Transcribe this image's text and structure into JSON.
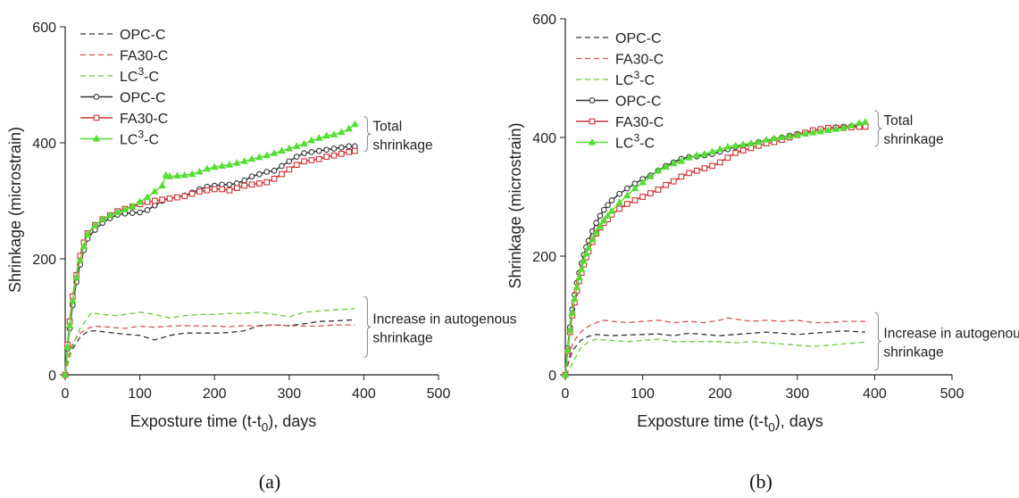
{
  "figure": {
    "captions": [
      "(a)",
      "(b)"
    ]
  },
  "chart_data": [
    {
      "type": "line",
      "panel_caption": "(a)",
      "xlabel": "Exposture time (t-t0), days",
      "ylabel": "Shrinkage (microstrain)",
      "xlim": [
        0,
        500
      ],
      "ylim": [
        0,
        600
      ],
      "xticks": [
        "0",
        "100",
        "200",
        "300",
        "400",
        "500"
      ],
      "yticks": [
        "0",
        "200",
        "400",
        "600"
      ],
      "legend_position": "top-left",
      "annotations": [
        {
          "text": [
            "Total",
            "shrinkage"
          ],
          "bracket": [
            385,
            445
          ]
        },
        {
          "text": [
            "Increase in autogenous",
            "shrinkage"
          ],
          "bracket": [
            30,
            135
          ]
        }
      ],
      "series": [
        {
          "name": "OPC-C",
          "style": "dashed",
          "color": "#333333",
          "marker": "none",
          "x": [
            0,
            5,
            10,
            20,
            30,
            40,
            60,
            80,
            100,
            120,
            140,
            160,
            180,
            200,
            220,
            240,
            260,
            280,
            300,
            320,
            340,
            360,
            388
          ],
          "y": [
            0,
            28,
            45,
            65,
            75,
            76,
            73,
            70,
            68,
            60,
            68,
            72,
            72,
            72,
            73,
            76,
            85,
            86,
            85,
            88,
            92,
            93,
            95
          ]
        },
        {
          "name": "FA30-C",
          "style": "dashed",
          "color": "#d9534f",
          "marker": "none",
          "x": [
            0,
            5,
            10,
            20,
            30,
            40,
            60,
            80,
            100,
            120,
            140,
            160,
            180,
            200,
            220,
            240,
            260,
            280,
            300,
            320,
            340,
            360,
            388
          ],
          "y": [
            0,
            35,
            55,
            72,
            80,
            84,
            82,
            80,
            84,
            82,
            84,
            85,
            84,
            84,
            83,
            85,
            84,
            86,
            85,
            84,
            84,
            86,
            86
          ]
        },
        {
          "name": "LC3-C",
          "style": "dashed",
          "color": "#66cc33",
          "marker": "none",
          "x": [
            0,
            5,
            10,
            20,
            30,
            35,
            50,
            70,
            100,
            120,
            140,
            160,
            180,
            200,
            220,
            240,
            260,
            280,
            300,
            320,
            340,
            360,
            388
          ],
          "y": [
            0,
            25,
            50,
            80,
            98,
            107,
            104,
            102,
            108,
            104,
            98,
            102,
            104,
            104,
            106,
            106,
            108,
            104,
            100,
            108,
            110,
            112,
            114
          ]
        },
        {
          "name": "OPC-C",
          "style": "solid",
          "color": "#333333",
          "marker": "circle",
          "x": [
            0,
            3,
            6,
            10,
            15,
            20,
            25,
            30,
            40,
            50,
            60,
            70,
            80,
            90,
            100,
            110,
            120,
            130,
            140,
            150,
            160,
            170,
            180,
            190,
            200,
            210,
            220,
            230,
            240,
            250,
            260,
            270,
            280,
            290,
            300,
            310,
            320,
            330,
            340,
            350,
            360,
            370,
            380,
            388
          ],
          "y": [
            0,
            45,
            80,
            120,
            160,
            190,
            215,
            235,
            250,
            262,
            270,
            276,
            278,
            279,
            280,
            284,
            292,
            300,
            304,
            306,
            309,
            314,
            320,
            324,
            326,
            328,
            328,
            330,
            335,
            342,
            346,
            350,
            352,
            360,
            368,
            376,
            382,
            384,
            386,
            388,
            390,
            392,
            394,
            394
          ]
        },
        {
          "name": "FA30-C",
          "style": "solid",
          "color": "#cc3333",
          "marker": "square",
          "x": [
            0,
            3,
            6,
            10,
            15,
            20,
            25,
            30,
            40,
            50,
            60,
            70,
            80,
            90,
            100,
            110,
            120,
            130,
            140,
            150,
            160,
            170,
            180,
            190,
            200,
            210,
            220,
            230,
            240,
            250,
            260,
            270,
            280,
            290,
            300,
            310,
            320,
            330,
            340,
            350,
            360,
            370,
            380,
            388
          ],
          "y": [
            0,
            52,
            92,
            135,
            172,
            205,
            228,
            244,
            258,
            268,
            275,
            282,
            286,
            290,
            294,
            298,
            300,
            302,
            304,
            306,
            308,
            312,
            316,
            318,
            320,
            320,
            318,
            322,
            326,
            328,
            330,
            332,
            338,
            346,
            354,
            362,
            368,
            370,
            372,
            376,
            378,
            381,
            384,
            386
          ]
        },
        {
          "name": "LC3-C",
          "style": "solid",
          "color": "#55dd33",
          "marker": "triangle",
          "x": [
            0,
            3,
            6,
            10,
            15,
            20,
            25,
            30,
            40,
            50,
            60,
            70,
            80,
            90,
            100,
            110,
            120,
            130,
            135,
            140,
            150,
            160,
            170,
            180,
            190,
            200,
            210,
            220,
            230,
            240,
            250,
            260,
            270,
            280,
            290,
            300,
            310,
            320,
            330,
            340,
            350,
            360,
            370,
            380,
            388
          ],
          "y": [
            0,
            48,
            85,
            128,
            168,
            198,
            222,
            242,
            258,
            268,
            275,
            280,
            285,
            290,
            298,
            306,
            316,
            326,
            344,
            342,
            343,
            344,
            346,
            350,
            355,
            358,
            360,
            362,
            365,
            368,
            372,
            375,
            378,
            382,
            386,
            390,
            394,
            398,
            404,
            408,
            412,
            414,
            418,
            424,
            432
          ]
        }
      ]
    },
    {
      "type": "line",
      "panel_caption": "(b)",
      "xlabel": "Exposture time (t-t0), days",
      "ylabel": "Shrinkage (microstrain)",
      "xlim": [
        0,
        500
      ],
      "ylim": [
        0,
        600
      ],
      "xticks": [
        "0",
        "100",
        "200",
        "300",
        "400",
        "500"
      ],
      "yticks": [
        "0",
        "200",
        "400",
        "600"
      ],
      "legend_position": "top-left",
      "annotations": [
        {
          "text": [
            "Total",
            "shrinkage"
          ],
          "bracket": [
            385,
            445
          ]
        },
        {
          "text": [
            "Increase in autogenous",
            "shrinkage"
          ],
          "bracket": [
            8,
            105
          ]
        }
      ],
      "series": [
        {
          "name": "OPC-C",
          "style": "dashed",
          "color": "#333333",
          "marker": "none",
          "x": [
            0,
            5,
            10,
            20,
            30,
            40,
            60,
            80,
            100,
            120,
            140,
            160,
            180,
            200,
            220,
            240,
            260,
            280,
            300,
            320,
            340,
            360,
            388
          ],
          "y": [
            0,
            25,
            42,
            58,
            65,
            68,
            66,
            67,
            68,
            69,
            66,
            70,
            68,
            66,
            68,
            70,
            72,
            70,
            68,
            70,
            72,
            74,
            72
          ]
        },
        {
          "name": "FA30-C",
          "style": "dashed",
          "color": "#d9534f",
          "marker": "none",
          "x": [
            0,
            5,
            10,
            20,
            30,
            40,
            50,
            60,
            80,
            100,
            120,
            140,
            160,
            180,
            200,
            210,
            220,
            240,
            260,
            280,
            300,
            320,
            340,
            360,
            388
          ],
          "y": [
            0,
            30,
            55,
            72,
            82,
            88,
            92,
            90,
            88,
            90,
            92,
            88,
            90,
            88,
            92,
            96,
            94,
            90,
            92,
            90,
            92,
            88,
            88,
            90,
            90
          ]
        },
        {
          "name": "LC3-C",
          "style": "dashed",
          "color": "#66cc33",
          "marker": "none",
          "x": [
            0,
            5,
            10,
            20,
            30,
            40,
            60,
            80,
            100,
            120,
            140,
            160,
            180,
            200,
            220,
            240,
            260,
            280,
            300,
            320,
            340,
            360,
            388
          ],
          "y": [
            0,
            8,
            22,
            45,
            56,
            60,
            58,
            56,
            58,
            60,
            56,
            56,
            56,
            56,
            54,
            56,
            54,
            52,
            50,
            48,
            50,
            52,
            55
          ]
        },
        {
          "name": "OPC-C",
          "style": "solid",
          "color": "#333333",
          "marker": "circle",
          "x": [
            0,
            3,
            6,
            9,
            12,
            15,
            18,
            21,
            24,
            27,
            30,
            35,
            40,
            45,
            50,
            55,
            60,
            70,
            80,
            90,
            100,
            110,
            120,
            130,
            140,
            150,
            160,
            170,
            180,
            190,
            200,
            210,
            220,
            230,
            240,
            250,
            260,
            270,
            280,
            290,
            300,
            310,
            320,
            330,
            340,
            350,
            360,
            370,
            380,
            388
          ],
          "y": [
            0,
            45,
            80,
            110,
            135,
            155,
            172,
            188,
            202,
            215,
            226,
            242,
            256,
            268,
            278,
            286,
            294,
            305,
            314,
            322,
            330,
            336,
            344,
            352,
            358,
            364,
            367,
            368,
            370,
            372,
            376,
            380,
            384,
            386,
            388,
            392,
            394,
            397,
            400,
            403,
            406,
            408,
            411,
            414,
            416,
            417,
            418,
            419,
            420,
            420
          ]
        },
        {
          "name": "FA30-C",
          "style": "solid",
          "color": "#cc3333",
          "marker": "square",
          "x": [
            0,
            3,
            6,
            9,
            12,
            15,
            18,
            21,
            24,
            27,
            30,
            35,
            40,
            45,
            50,
            55,
            60,
            70,
            80,
            90,
            100,
            110,
            120,
            130,
            140,
            150,
            160,
            170,
            180,
            190,
            200,
            210,
            220,
            230,
            240,
            250,
            260,
            270,
            280,
            290,
            300,
            310,
            320,
            330,
            340,
            350,
            360,
            370,
            380,
            388
          ],
          "y": [
            0,
            40,
            72,
            100,
            122,
            142,
            158,
            172,
            186,
            198,
            208,
            224,
            238,
            248,
            256,
            262,
            270,
            280,
            288,
            294,
            300,
            306,
            312,
            320,
            326,
            334,
            340,
            344,
            348,
            352,
            358,
            366,
            374,
            378,
            382,
            386,
            390,
            392,
            396,
            400,
            404,
            408,
            412,
            414,
            416,
            416,
            416,
            417,
            418,
            418
          ]
        },
        {
          "name": "LC3-C",
          "style": "solid",
          "color": "#55dd33",
          "marker": "triangle",
          "x": [
            0,
            3,
            6,
            9,
            12,
            15,
            18,
            21,
            24,
            27,
            30,
            35,
            40,
            45,
            50,
            55,
            60,
            70,
            80,
            90,
            100,
            110,
            120,
            130,
            140,
            150,
            160,
            170,
            180,
            190,
            200,
            210,
            220,
            230,
            240,
            250,
            260,
            270,
            280,
            290,
            300,
            310,
            320,
            330,
            340,
            350,
            360,
            370,
            380,
            388
          ],
          "y": [
            0,
            42,
            75,
            104,
            128,
            148,
            164,
            178,
            192,
            204,
            214,
            228,
            240,
            250,
            260,
            268,
            276,
            290,
            302,
            314,
            324,
            334,
            344,
            350,
            356,
            360,
            366,
            370,
            372,
            376,
            380,
            384,
            386,
            388,
            390,
            392,
            396,
            398,
            400,
            402,
            404,
            406,
            408,
            410,
            412,
            414,
            416,
            420,
            424,
            426
          ]
        }
      ]
    }
  ]
}
